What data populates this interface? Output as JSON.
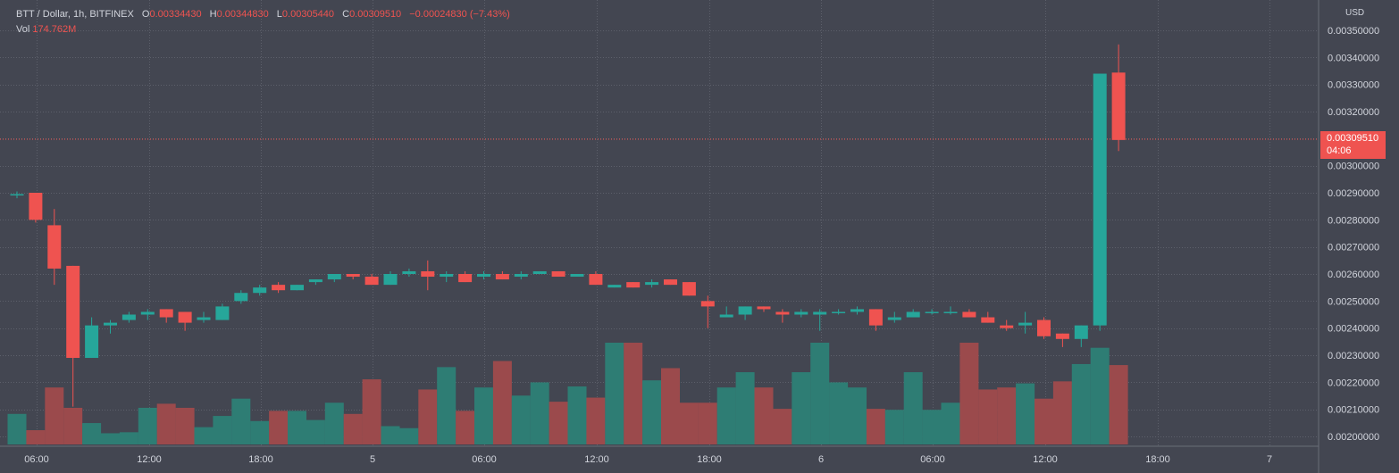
{
  "legend": {
    "symbol": "BTT / Dollar, 1h, BITFINEX",
    "o_key": "O",
    "open": "0.00334430",
    "h_key": "H",
    "high": "0.00344830",
    "l_key": "L",
    "low": "0.00305440",
    "c_key": "C",
    "close": "0.00309510",
    "change": "−0.00024830 (−7.43%)",
    "vol_key": "Vol",
    "vol": "174.762M"
  },
  "price_axis": {
    "currency": "USD",
    "ticks": [
      "0.00350000",
      "0.00340000",
      "0.00330000",
      "0.00320000",
      "0.00300000",
      "0.00290000",
      "0.00280000",
      "0.00270000",
      "0.00260000",
      "0.00250000",
      "0.00240000",
      "0.00230000",
      "0.00220000",
      "0.00210000",
      "0.00200000"
    ]
  },
  "last_price": {
    "value": "0.00309510",
    "countdown": "04:06"
  },
  "colors": {
    "up": "#26a69a",
    "down": "#ef5350",
    "up_volume": "#2e7d74",
    "down_volume": "#9b4a4c",
    "background": "#434651",
    "grid": "#5d606b",
    "text": "#d1d4dc"
  },
  "chart_data": {
    "type": "candlestick",
    "symbol": "BTT / Dollar",
    "interval": "1h",
    "exchange": "BITFINEX",
    "time_axis_labels": [
      "06:00",
      "12:00",
      "18:00",
      "5",
      "06:00",
      "12:00",
      "18:00",
      "6",
      "06:00",
      "12:00",
      "18:00",
      "7"
    ],
    "y_range": [
      0.00196,
      0.00352
    ],
    "volume_scale": "relative",
    "candles": [
      {
        "o": 0.002895,
        "h": 0.002905,
        "l": 0.00288,
        "c": 0.002895,
        "v": 0.3
      },
      {
        "o": 0.0029,
        "h": 0.0029,
        "l": 0.00279,
        "c": 0.0028,
        "v": 0.14
      },
      {
        "o": 0.00278,
        "h": 0.00284,
        "l": 0.00256,
        "c": 0.00262,
        "v": 0.56
      },
      {
        "o": 0.00263,
        "h": 0.00263,
        "l": 0.00211,
        "c": 0.00229,
        "v": 0.36
      },
      {
        "o": 0.00229,
        "h": 0.00244,
        "l": 0.00229,
        "c": 0.00241,
        "v": 0.21
      },
      {
        "o": 0.00241,
        "h": 0.00243,
        "l": 0.00238,
        "c": 0.00242,
        "v": 0.11
      },
      {
        "o": 0.00243,
        "h": 0.00246,
        "l": 0.00242,
        "c": 0.00245,
        "v": 0.12
      },
      {
        "o": 0.00245,
        "h": 0.00247,
        "l": 0.00243,
        "c": 0.00246,
        "v": 0.36
      },
      {
        "o": 0.00247,
        "h": 0.00247,
        "l": 0.00242,
        "c": 0.00244,
        "v": 0.4
      },
      {
        "o": 0.00246,
        "h": 0.00246,
        "l": 0.00239,
        "c": 0.00242,
        "v": 0.36
      },
      {
        "o": 0.00243,
        "h": 0.00246,
        "l": 0.00242,
        "c": 0.00244,
        "v": 0.17
      },
      {
        "o": 0.00243,
        "h": 0.00249,
        "l": 0.00243,
        "c": 0.00248,
        "v": 0.28
      },
      {
        "o": 0.0025,
        "h": 0.00254,
        "l": 0.00249,
        "c": 0.00253,
        "v": 0.45
      },
      {
        "o": 0.00253,
        "h": 0.00256,
        "l": 0.00252,
        "c": 0.00255,
        "v": 0.23
      },
      {
        "o": 0.00256,
        "h": 0.00257,
        "l": 0.00253,
        "c": 0.00254,
        "v": 0.33
      },
      {
        "o": 0.00254,
        "h": 0.00256,
        "l": 0.00254,
        "c": 0.00256,
        "v": 0.33
      },
      {
        "o": 0.00257,
        "h": 0.00258,
        "l": 0.00256,
        "c": 0.00258,
        "v": 0.24
      },
      {
        "o": 0.00258,
        "h": 0.0026,
        "l": 0.00257,
        "c": 0.0026,
        "v": 0.41
      },
      {
        "o": 0.0026,
        "h": 0.0026,
        "l": 0.00258,
        "c": 0.00259,
        "v": 0.3
      },
      {
        "o": 0.00259,
        "h": 0.0026,
        "l": 0.00256,
        "c": 0.00256,
        "v": 0.64
      },
      {
        "o": 0.00256,
        "h": 0.00261,
        "l": 0.00256,
        "c": 0.0026,
        "v": 0.18
      },
      {
        "o": 0.0026,
        "h": 0.00262,
        "l": 0.00259,
        "c": 0.00261,
        "v": 0.16
      },
      {
        "o": 0.00261,
        "h": 0.00265,
        "l": 0.00254,
        "c": 0.00259,
        "v": 0.54
      },
      {
        "o": 0.00259,
        "h": 0.00261,
        "l": 0.00257,
        "c": 0.0026,
        "v": 0.76
      },
      {
        "o": 0.0026,
        "h": 0.00261,
        "l": 0.00257,
        "c": 0.00257,
        "v": 0.33
      },
      {
        "o": 0.00259,
        "h": 0.00261,
        "l": 0.00258,
        "c": 0.0026,
        "v": 0.56
      },
      {
        "o": 0.0026,
        "h": 0.00261,
        "l": 0.00258,
        "c": 0.00258,
        "v": 0.82
      },
      {
        "o": 0.00259,
        "h": 0.00261,
        "l": 0.00258,
        "c": 0.0026,
        "v": 0.48
      },
      {
        "o": 0.0026,
        "h": 0.00261,
        "l": 0.0026,
        "c": 0.00261,
        "v": 0.61
      },
      {
        "o": 0.00261,
        "h": 0.00261,
        "l": 0.00259,
        "c": 0.00259,
        "v": 0.42
      },
      {
        "o": 0.00259,
        "h": 0.0026,
        "l": 0.00259,
        "c": 0.0026,
        "v": 0.57
      },
      {
        "o": 0.0026,
        "h": 0.00261,
        "l": 0.00256,
        "c": 0.00256,
        "v": 0.46
      },
      {
        "o": 0.00255,
        "h": 0.00256,
        "l": 0.00255,
        "c": 0.00256,
        "v": 1.0
      },
      {
        "o": 0.00257,
        "h": 0.00257,
        "l": 0.00255,
        "c": 0.00255,
        "v": 1.0
      },
      {
        "o": 0.00256,
        "h": 0.00258,
        "l": 0.00255,
        "c": 0.00257,
        "v": 0.63
      },
      {
        "o": 0.00258,
        "h": 0.00258,
        "l": 0.00256,
        "c": 0.00256,
        "v": 0.75
      },
      {
        "o": 0.00257,
        "h": 0.00257,
        "l": 0.00252,
        "c": 0.00252,
        "v": 0.41
      },
      {
        "o": 0.0025,
        "h": 0.00252,
        "l": 0.0024,
        "c": 0.00248,
        "v": 0.41
      },
      {
        "o": 0.00244,
        "h": 0.00248,
        "l": 0.00244,
        "c": 0.00245,
        "v": 0.56
      },
      {
        "o": 0.00245,
        "h": 0.00248,
        "l": 0.00243,
        "c": 0.00248,
        "v": 0.71
      },
      {
        "o": 0.00248,
        "h": 0.00248,
        "l": 0.00246,
        "c": 0.00247,
        "v": 0.56
      },
      {
        "o": 0.00246,
        "h": 0.00247,
        "l": 0.00242,
        "c": 0.00245,
        "v": 0.35
      },
      {
        "o": 0.00245,
        "h": 0.00247,
        "l": 0.00244,
        "c": 0.00246,
        "v": 0.71
      },
      {
        "o": 0.00245,
        "h": 0.00247,
        "l": 0.00239,
        "c": 0.00246,
        "v": 1.0
      },
      {
        "o": 0.00246,
        "h": 0.00247,
        "l": 0.00245,
        "c": 0.00246,
        "v": 0.61
      },
      {
        "o": 0.00246,
        "h": 0.00248,
        "l": 0.00245,
        "c": 0.00247,
        "v": 0.56
      },
      {
        "o": 0.00247,
        "h": 0.00247,
        "l": 0.00239,
        "c": 0.00241,
        "v": 0.35
      },
      {
        "o": 0.00243,
        "h": 0.00246,
        "l": 0.00242,
        "c": 0.00244,
        "v": 0.34
      },
      {
        "o": 0.00244,
        "h": 0.00247,
        "l": 0.00244,
        "c": 0.00246,
        "v": 0.71
      },
      {
        "o": 0.00246,
        "h": 0.00247,
        "l": 0.00245,
        "c": 0.00246,
        "v": 0.34
      },
      {
        "o": 0.00246,
        "h": 0.00248,
        "l": 0.00245,
        "c": 0.00246,
        "v": 0.41
      },
      {
        "o": 0.00246,
        "h": 0.00247,
        "l": 0.00244,
        "c": 0.00244,
        "v": 1.0
      },
      {
        "o": 0.00244,
        "h": 0.00246,
        "l": 0.00242,
        "c": 0.00242,
        "v": 0.54
      },
      {
        "o": 0.00241,
        "h": 0.00243,
        "l": 0.00239,
        "c": 0.0024,
        "v": 0.56
      },
      {
        "o": 0.00241,
        "h": 0.00246,
        "l": 0.00238,
        "c": 0.00242,
        "v": 0.6
      },
      {
        "o": 0.00243,
        "h": 0.00244,
        "l": 0.00236,
        "c": 0.00237,
        "v": 0.45
      },
      {
        "o": 0.00238,
        "h": 0.00238,
        "l": 0.00233,
        "c": 0.00236,
        "v": 0.62
      },
      {
        "o": 0.00236,
        "h": 0.00241,
        "l": 0.00233,
        "c": 0.00241,
        "v": 0.79
      },
      {
        "o": 0.00241,
        "h": 0.00334,
        "l": 0.00239,
        "c": 0.00334,
        "v": 0.95
      },
      {
        "o": 0.003344,
        "h": 0.003448,
        "l": 0.003054,
        "c": 0.003095,
        "v": 0.78
      }
    ]
  }
}
